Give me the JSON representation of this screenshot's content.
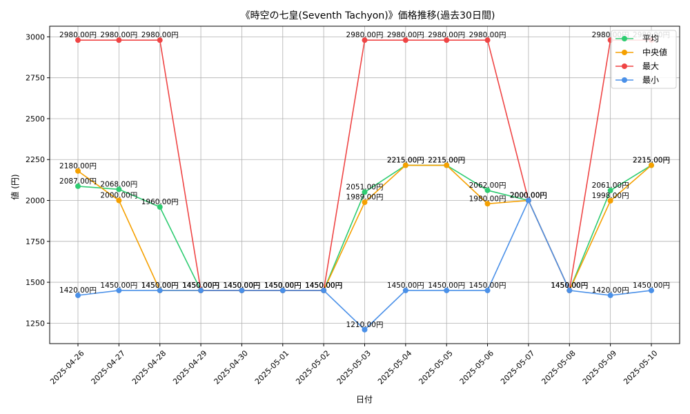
{
  "chart_data": {
    "type": "line",
    "title": "《時空の七皇(Seventh Tachyon)》価格推移(過去30日間)",
    "xlabel": "日付",
    "ylabel": "値 (円)",
    "ylim": [
      1125,
      3065
    ],
    "yticks": [
      1250,
      1500,
      1750,
      2000,
      2250,
      2500,
      2750,
      3000
    ],
    "grid": true,
    "legend_position": "top-right",
    "value_suffix": "円",
    "categories": [
      "2025-04-26",
      "2025-04-27",
      "2025-04-28",
      "2025-04-29",
      "2025-04-30",
      "2025-05-01",
      "2025-05-02",
      "2025-05-03",
      "2025-05-04",
      "2025-05-05",
      "2025-05-06",
      "2025-05-07",
      "2025-05-08",
      "2025-05-09",
      "2025-05-10"
    ],
    "series": [
      {
        "name": "平均",
        "color": "#2ecc71",
        "values": [
          2087,
          2068,
          1960,
          1450,
          1450,
          1450,
          1450,
          2051,
          2215,
          2215,
          2062,
          2000,
          1450,
          2061,
          2215
        ],
        "labels": [
          "2087.00円",
          "2068.00円",
          "1960.00円",
          "1450.00円",
          "1450.00円",
          "1450.00円",
          "1450.00円",
          "2051.00円",
          "2215.00円",
          "2215.00円",
          "2062.00円",
          "2000.00円",
          "1450.00円",
          "2061.00円",
          "2215.00円"
        ]
      },
      {
        "name": "中央値",
        "color": "#f5a000",
        "values": [
          2180,
          2000,
          1450,
          1450,
          1450,
          1450,
          1450,
          1989,
          2215,
          2215,
          1980,
          2000,
          1450,
          1998,
          2215
        ],
        "labels": [
          "2180.00円",
          "2000.00円",
          "1450.00円",
          "1450.00円",
          "1450.00円",
          "1450.00円",
          "1450.00円",
          "1989.00円",
          "2215.00円",
          "2215.00円",
          "1980.00円",
          "2000.00円",
          "1450.00円",
          "1998.00円",
          "2215.00円"
        ]
      },
      {
        "name": "最大",
        "color": "#ef4444",
        "values": [
          2980,
          2980,
          2980,
          1450,
          1450,
          1450,
          1450,
          2980,
          2980,
          2980,
          2980,
          2000,
          1450,
          2980,
          2980
        ],
        "labels": [
          "2980.00円",
          "2980.00円",
          "2980.00円",
          "1450.00円",
          "1450.00円",
          "1450.00円",
          "1450.00円",
          "2980.00円",
          "2980.00円",
          "2980.00円",
          "2980.00円",
          "2000.00円",
          "1450.00円",
          "2980.00円",
          "2980.00円"
        ]
      },
      {
        "name": "最小",
        "color": "#4a90e8",
        "values": [
          1420,
          1450,
          1450,
          1450,
          1450,
          1450,
          1450,
          1210,
          1450,
          1450,
          1450,
          2000,
          1450,
          1420,
          1450
        ],
        "labels": [
          "1420.00円",
          "1450.00円",
          "1450.00円",
          "1450.00円",
          "1450.00円",
          "1450.00円",
          "1450.00円",
          "1210.00円",
          "1450.00円",
          "1450.00円",
          "1450.00円",
          "2000.00円",
          "1450.00円",
          "1420.00円",
          "1450.00円"
        ]
      }
    ]
  }
}
